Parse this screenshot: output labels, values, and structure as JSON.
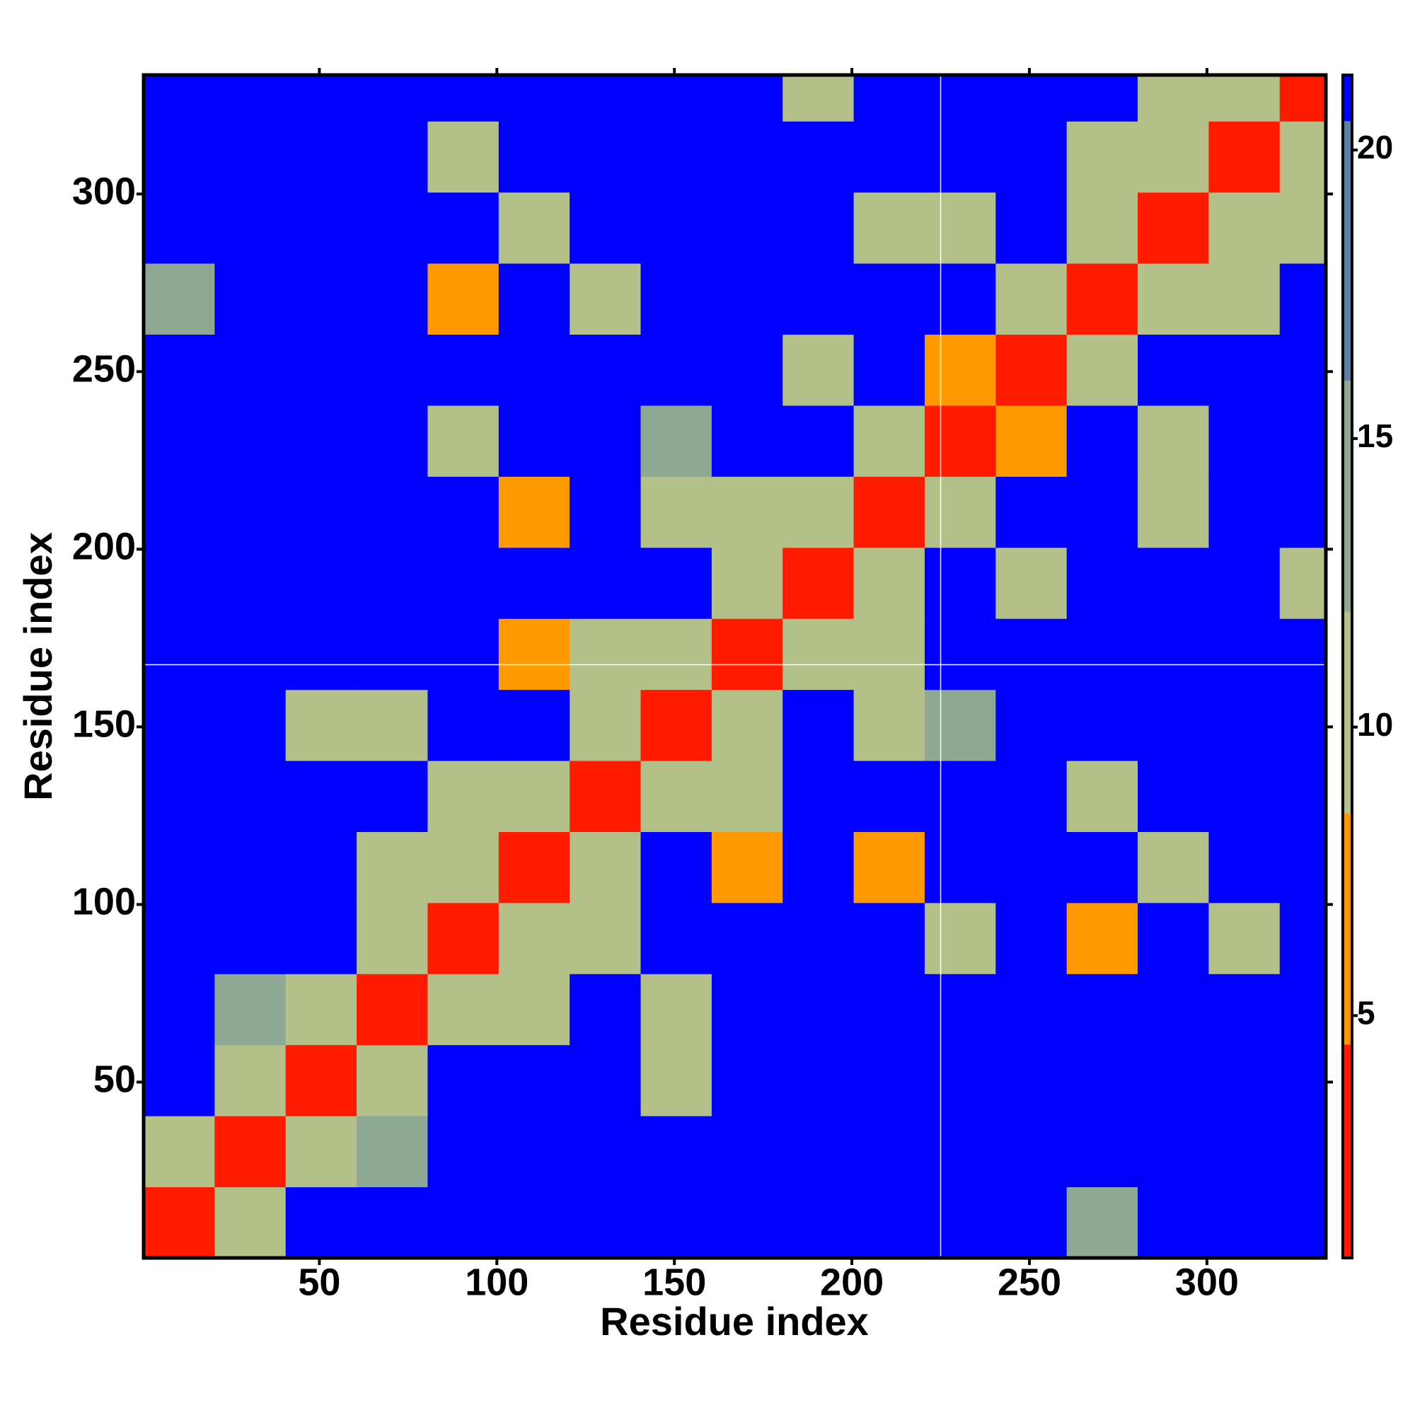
{
  "chart_data": {
    "type": "heatmap",
    "xlabel": "Residue index",
    "ylabel": "Residue index",
    "xlim": [
      0.5,
      333.5
    ],
    "ylim": [
      0.5,
      333.5
    ],
    "xticks": [
      50,
      100,
      150,
      200,
      250,
      300
    ],
    "yticks": [
      50,
      100,
      150,
      200,
      250,
      300
    ],
    "xbins": [
      0.5,
      20.5,
      40.5,
      60.5,
      80.5,
      100.5,
      120.5,
      140.5,
      160.5,
      180.5,
      200.5,
      220.5,
      240.5,
      260.5,
      280.5,
      300.5,
      320.5,
      333.5
    ],
    "ybins": [
      0.5,
      20.5,
      40.5,
      60.5,
      80.5,
      100.5,
      120.5,
      140.5,
      160.5,
      180.5,
      200.5,
      220.5,
      240.5,
      260.5,
      280.5,
      300.5,
      320.5,
      333.5
    ],
    "values": [
      [
        3,
        11,
        21,
        21,
        21,
        21,
        21,
        21,
        21,
        21,
        21,
        21,
        21,
        13,
        21,
        21,
        21
      ],
      [
        11,
        3,
        11,
        13,
        21,
        21,
        21,
        21,
        21,
        21,
        21,
        21,
        21,
        21,
        21,
        21,
        21
      ],
      [
        21,
        11,
        3,
        11,
        21,
        21,
        21,
        11,
        21,
        21,
        21,
        21,
        21,
        21,
        21,
        21,
        21
      ],
      [
        21,
        13,
        11,
        3,
        11,
        11,
        21,
        11,
        21,
        21,
        21,
        21,
        21,
        21,
        21,
        21,
        21
      ],
      [
        21,
        21,
        21,
        11,
        3,
        11,
        11,
        21,
        21,
        21,
        21,
        12,
        21,
        8,
        21,
        12,
        21
      ],
      [
        21,
        21,
        21,
        11,
        11,
        3,
        11,
        21,
        8,
        21,
        8,
        21,
        21,
        21,
        12,
        21,
        21
      ],
      [
        21,
        21,
        21,
        21,
        11,
        11,
        3,
        10,
        9,
        21,
        21,
        21,
        21,
        11,
        21,
        21,
        21
      ],
      [
        21,
        21,
        11,
        11,
        21,
        21,
        10,
        3,
        11,
        21,
        12,
        13,
        21,
        21,
        21,
        21,
        21
      ],
      [
        21,
        21,
        21,
        21,
        21,
        8,
        9,
        11,
        3,
        11,
        10,
        21,
        21,
        21,
        21,
        21,
        21
      ],
      [
        21,
        21,
        21,
        21,
        21,
        21,
        21,
        21,
        11,
        3,
        11,
        21,
        11,
        21,
        21,
        21,
        9
      ],
      [
        21,
        21,
        21,
        21,
        21,
        8,
        21,
        12,
        10,
        11,
        3,
        11,
        21,
        21,
        9,
        21,
        21
      ],
      [
        21,
        21,
        21,
        21,
        12,
        21,
        21,
        13,
        21,
        21,
        11,
        3,
        8,
        21,
        9,
        21,
        21
      ],
      [
        21,
        21,
        21,
        21,
        21,
        21,
        21,
        21,
        21,
        11,
        21,
        8,
        3,
        11,
        21,
        21,
        21
      ],
      [
        13,
        21,
        21,
        21,
        8,
        21,
        11,
        21,
        21,
        21,
        21,
        21,
        11,
        3,
        11,
        10,
        21
      ],
      [
        21,
        21,
        21,
        21,
        21,
        12,
        21,
        21,
        21,
        21,
        9,
        9,
        21,
        11,
        3,
        11,
        10
      ],
      [
        21,
        21,
        21,
        21,
        12,
        21,
        21,
        21,
        21,
        21,
        21,
        21,
        21,
        10,
        11,
        3,
        11
      ],
      [
        21,
        21,
        21,
        21,
        21,
        21,
        21,
        21,
        21,
        9,
        21,
        21,
        21,
        21,
        10,
        11,
        3
      ]
    ],
    "colorscale": [
      {
        "max": 4.5,
        "color": "#ff1a00"
      },
      {
        "max": 8.5,
        "color": "#ff9900"
      },
      {
        "max": 12,
        "color": "#b4c08a"
      },
      {
        "max": 16,
        "color": "#8fa894"
      },
      {
        "max": 20.5,
        "color": "#5d7fa3"
      },
      {
        "max": 21.3,
        "color": "#0000ff"
      }
    ],
    "clim": [
      0.8,
      21.3
    ],
    "cticks": [
      5,
      10,
      15,
      20
    ],
    "vlines": [
      225
    ],
    "hlines": [
      167.5
    ]
  }
}
